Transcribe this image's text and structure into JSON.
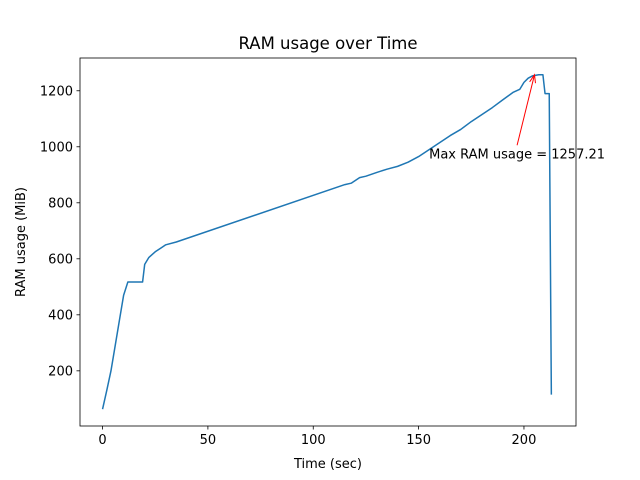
{
  "chart_data": {
    "type": "line",
    "title": "RAM usage over Time",
    "xlabel": "Time (sec)",
    "ylabel": "RAM usage (MiB)",
    "x": [
      0,
      2,
      4,
      6,
      8,
      10,
      12,
      19,
      20,
      22,
      25,
      28,
      30,
      35,
      115,
      118,
      122,
      125,
      130,
      135,
      140,
      145,
      150,
      155,
      160,
      165,
      170,
      175,
      180,
      185,
      190,
      195,
      198,
      200,
      202,
      204,
      207,
      209,
      210,
      212,
      213
    ],
    "series": [
      {
        "name": "RAM usage",
        "color": "#1f77b4",
        "values": [
          63,
          130,
          200,
          290,
          380,
          470,
          517,
          517,
          580,
          605,
          625,
          640,
          650,
          660,
          865,
          870,
          890,
          895,
          908,
          920,
          930,
          945,
          965,
          990,
          1015,
          1040,
          1062,
          1090,
          1115,
          1140,
          1168,
          1195,
          1205,
          1230,
          1245,
          1253,
          1257.21,
          1257,
          1190,
          1190,
          115
        ]
      }
    ],
    "xlim": [
      -10.7,
      224.7
    ],
    "ylim": [
      3,
      1317
    ],
    "xticks": [
      0,
      50,
      100,
      150,
      200
    ],
    "yticks": [
      200,
      400,
      600,
      800,
      1000,
      1200
    ],
    "grid": false,
    "annotation": {
      "text": "Max RAM usage = 1257.21",
      "xy": [
        205,
        1257.21
      ],
      "xytext": [
        155,
        975
      ],
      "color": "#ff0000"
    }
  }
}
